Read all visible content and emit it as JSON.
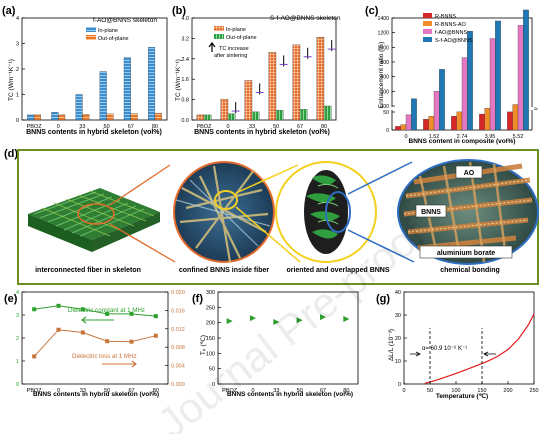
{
  "panels": {
    "a": {
      "tag": "(a)",
      "title": "f-AO@BNNS skeleton",
      "ylabel": "TC (Wm⁻¹K⁻¹)",
      "xlabel": "BNNS contents in hybrid skeleton (vol%)",
      "legend": [
        "In-plane",
        "Out-of-plane"
      ]
    },
    "b": {
      "tag": "(b)",
      "title": "S-f-AO@BNNS skeleton",
      "ylabel": "TC (Wm⁻¹K⁻¹)",
      "xlabel": "BNNS contents in hybrid skeleton (vol%)",
      "legend": [
        "In-plane",
        "Out-of-plane"
      ],
      "annotation": [
        "TC increase",
        "after sintering"
      ]
    },
    "c": {
      "tag": "(c)",
      "ylabel": "Enhancement ratio (%)",
      "xlabel": "BNNS content in composite (vol%)",
      "legend": [
        "R-BNNS",
        "R-BNNS-AO",
        "f-AO@BNNS",
        "S-f-AO@BNNS"
      ]
    },
    "d": {
      "tag": "(d)",
      "labels": [
        "interconnected fiber in skeleton",
        "confined BNNS inside fiber",
        "oriented and overlapped BNNS",
        "chemical bonding"
      ],
      "callouts": [
        "AO",
        "BNNS",
        "aluminium borate"
      ]
    },
    "e": {
      "tag": "(e)",
      "label_const": "Dielectric constant at 1 MHz",
      "label_loss": "Dielectric loss at 1 MHz",
      "xlabel": "BNNS contents in hybrid skeleton (vol%)"
    },
    "f": {
      "tag": "(f)",
      "ylabel": "Tₚ (℃)",
      "xlabel": "BNNS contents in hybrid skeleton (vol%)"
    },
    "g": {
      "tag": "(g)",
      "ylabel": "ΔL/L (10⁻³)",
      "xlabel": "Temperature (℃)",
      "annotation": "α= 60.9 10⁻⁶ K⁻¹"
    }
  },
  "watermark": "Journal Pre-proof",
  "colors": {
    "inplane": "#3b8fd0",
    "outplane": "#f28c28",
    "r_bnns": "#d62728",
    "r_bnns_ao": "#f28c28",
    "f_ao": "#e377c2",
    "s_f_ao": "#1f77b4",
    "const": "#2ca02c",
    "loss": "#c8733a",
    "tp": "#2ca02c",
    "tel": "#e41a1c",
    "frame": "#6b8e23"
  },
  "chart_data": [
    {
      "id": "a",
      "type": "bar",
      "categories": [
        "PBOZ",
        "0",
        "33",
        "50",
        "67",
        "80"
      ],
      "ylim": [
        0,
        4
      ],
      "yticks": [
        0,
        1,
        2,
        3,
        4
      ],
      "series": [
        {
          "name": "In-plane",
          "values": [
            0.2,
            0.3,
            1.0,
            1.9,
            2.45,
            2.85
          ]
        },
        {
          "name": "Out-of-plane",
          "values": [
            0.2,
            0.2,
            0.22,
            0.24,
            0.25,
            0.27
          ]
        }
      ]
    },
    {
      "id": "b",
      "type": "bar",
      "categories": [
        "PBOZ",
        "0",
        "33",
        "50",
        "67",
        "80"
      ],
      "ylim": [
        0,
        4.0
      ],
      "yticks": [
        0.0,
        0.8,
        1.6,
        2.4,
        3.2,
        4.0
      ],
      "series": [
        {
          "name": "In-plane",
          "values": [
            0.2,
            0.82,
            1.55,
            2.65,
            2.95,
            3.25
          ]
        },
        {
          "name": "Out-of-plane",
          "values": [
            0.2,
            0.25,
            0.32,
            0.38,
            0.42,
            0.55
          ]
        }
      ]
    },
    {
      "id": "c",
      "type": "bar",
      "categories": [
        "0",
        "1.52",
        "2.74",
        "3.95",
        "5.52"
      ],
      "yticks": [
        0,
        50,
        200,
        400,
        600,
        800,
        1000,
        1200,
        1400
      ],
      "series": [
        {
          "name": "R-BNNS",
          "values": [
            10,
            30,
            60,
            90,
            120
          ]
        },
        {
          "name": "R-BNNS-AO",
          "values": [
            15,
            60,
            120,
            170,
            220
          ]
        },
        {
          "name": "f-AO@BNNS",
          "values": [
            80,
            400,
            860,
            1120,
            1300
          ]
        },
        {
          "name": "S-f-AO@BNNS",
          "values": [
            300,
            700,
            1220,
            1360,
            1510
          ]
        }
      ]
    },
    {
      "id": "e",
      "type": "line",
      "categories": [
        "PBOZ",
        "0",
        "33",
        "50",
        "67",
        "80"
      ],
      "ylim_left": [
        0,
        4
      ],
      "yticks_left": [
        0,
        1,
        2,
        3,
        4
      ],
      "ylim_right": [
        0,
        0.02
      ],
      "yticks_right": [
        "0.000",
        "0.004",
        "0.008",
        "0.012",
        "0.016",
        "0.020"
      ],
      "series": [
        {
          "name": "Dielectric constant at 1 MHz",
          "values": [
            3.25,
            3.4,
            3.25,
            3.05,
            3.05,
            2.95
          ]
        },
        {
          "name": "Dielectric loss at 1 MHz",
          "values": [
            0.006,
            0.0118,
            0.0112,
            0.0093,
            0.0092,
            0.0105
          ]
        }
      ]
    },
    {
      "id": "f",
      "type": "scatter",
      "categories": [
        "PBOZ",
        "0",
        "33",
        "50",
        "67",
        "80"
      ],
      "ylim": [
        0,
        300
      ],
      "yticks": [
        0,
        50,
        100,
        150,
        200,
        250,
        300
      ],
      "values": [
        205,
        215,
        202,
        208,
        218,
        212
      ]
    },
    {
      "id": "g",
      "type": "line",
      "xlim": [
        0,
        250
      ],
      "xticks": [
        0,
        50,
        100,
        150,
        200,
        250
      ],
      "ylim": [
        0,
        40
      ],
      "yticks": [
        0,
        10,
        20,
        30,
        40
      ],
      "x": [
        40,
        60,
        80,
        100,
        120,
        140,
        160,
        180,
        200,
        220,
        240,
        250
      ],
      "y": [
        0.3,
        1.5,
        3.0,
        4.6,
        6.3,
        8.0,
        9.8,
        12.0,
        15.0,
        19.5,
        26.0,
        30.5
      ]
    }
  ]
}
